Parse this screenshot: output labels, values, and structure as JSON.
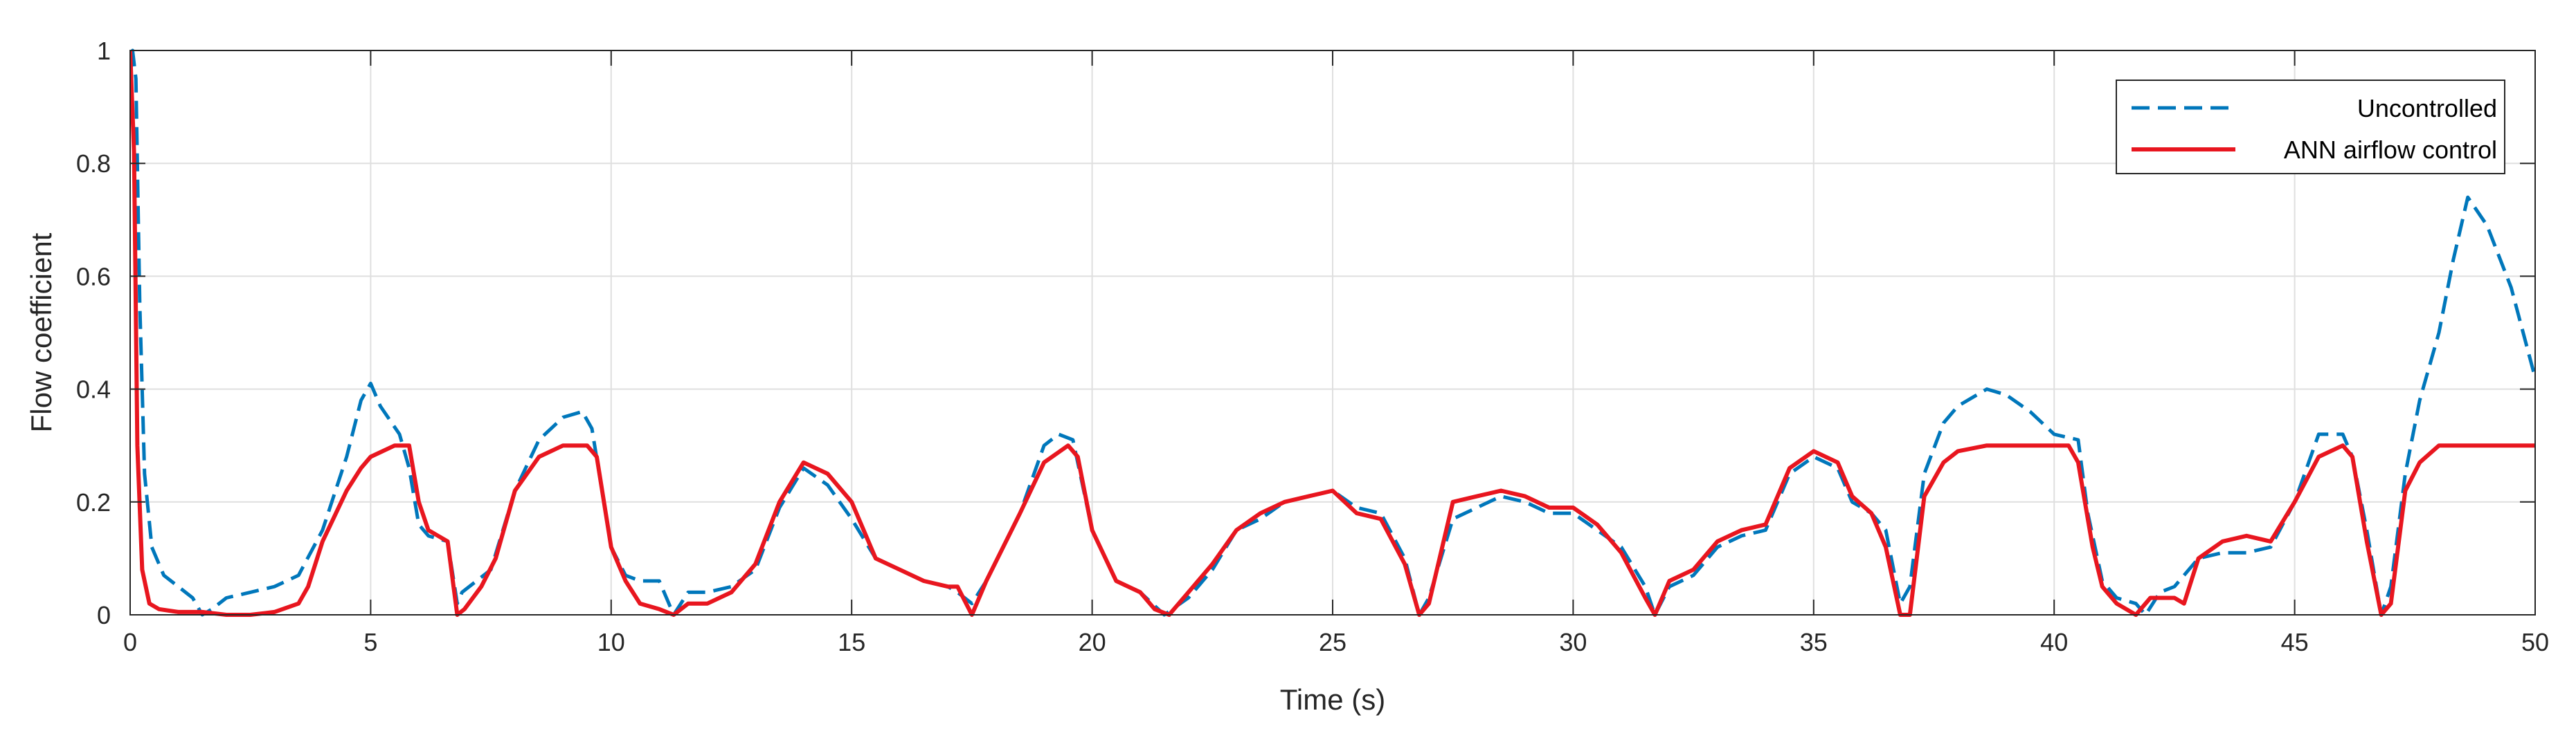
{
  "chart_data": {
    "type": "line",
    "xlabel": "Time (s)",
    "ylabel": "Flow coefficient",
    "xlim": [
      0,
      50
    ],
    "ylim": [
      0,
      1
    ],
    "xticks": [
      0,
      5,
      10,
      15,
      20,
      25,
      30,
      35,
      40,
      45,
      50
    ],
    "yticks": [
      0,
      0.2,
      0.4,
      0.6,
      0.8,
      1
    ],
    "xtick_labels": [
      "0",
      "5",
      "10",
      "15",
      "20",
      "25",
      "30",
      "35",
      "40",
      "45",
      "50"
    ],
    "ytick_labels": [
      "0",
      "0.2",
      "0.4",
      "0.6",
      "0.8",
      "1"
    ],
    "grid": true,
    "legend_position": "top-right",
    "series": [
      {
        "name": "Uncontrolled",
        "color": "#0077BB",
        "style": "dashed",
        "points": [
          [
            0,
            0.95
          ],
          [
            0.05,
            1.0
          ],
          [
            0.12,
            0.95
          ],
          [
            0.2,
            0.55
          ],
          [
            0.3,
            0.25
          ],
          [
            0.45,
            0.12
          ],
          [
            0.7,
            0.07
          ],
          [
            1.0,
            0.05
          ],
          [
            1.3,
            0.03
          ],
          [
            1.5,
            0.0
          ],
          [
            1.7,
            0.01
          ],
          [
            2.0,
            0.03
          ],
          [
            2.5,
            0.04
          ],
          [
            3.0,
            0.05
          ],
          [
            3.5,
            0.07
          ],
          [
            4.0,
            0.15
          ],
          [
            4.5,
            0.28
          ],
          [
            4.8,
            0.38
          ],
          [
            5.0,
            0.41
          ],
          [
            5.2,
            0.37
          ],
          [
            5.6,
            0.32
          ],
          [
            5.8,
            0.26
          ],
          [
            6.0,
            0.16
          ],
          [
            6.2,
            0.14
          ],
          [
            6.6,
            0.13
          ],
          [
            6.8,
            0.02
          ],
          [
            6.9,
            0.04
          ],
          [
            7.2,
            0.06
          ],
          [
            7.5,
            0.08
          ],
          [
            8.0,
            0.22
          ],
          [
            8.5,
            0.31
          ],
          [
            9.0,
            0.35
          ],
          [
            9.4,
            0.36
          ],
          [
            9.6,
            0.33
          ],
          [
            10.0,
            0.12
          ],
          [
            10.3,
            0.07
          ],
          [
            10.6,
            0.06
          ],
          [
            11.0,
            0.06
          ],
          [
            11.3,
            0.0
          ],
          [
            11.6,
            0.04
          ],
          [
            12.0,
            0.04
          ],
          [
            12.5,
            0.05
          ],
          [
            13.0,
            0.08
          ],
          [
            13.5,
            0.19
          ],
          [
            14.0,
            0.26
          ],
          [
            14.5,
            0.23
          ],
          [
            15.0,
            0.17
          ],
          [
            15.5,
            0.1
          ],
          [
            16.0,
            0.08
          ],
          [
            16.5,
            0.06
          ],
          [
            17.0,
            0.05
          ],
          [
            17.2,
            0.04
          ],
          [
            17.5,
            0.02
          ],
          [
            17.8,
            0.06
          ],
          [
            18.5,
            0.18
          ],
          [
            19.0,
            0.3
          ],
          [
            19.3,
            0.32
          ],
          [
            19.6,
            0.31
          ],
          [
            20.0,
            0.15
          ],
          [
            20.5,
            0.06
          ],
          [
            21.0,
            0.04
          ],
          [
            21.5,
            0.0
          ],
          [
            22.0,
            0.03
          ],
          [
            22.5,
            0.08
          ],
          [
            23.0,
            0.15
          ],
          [
            23.5,
            0.17
          ],
          [
            24.0,
            0.2
          ],
          [
            24.5,
            0.21
          ],
          [
            25.0,
            0.22
          ],
          [
            25.5,
            0.19
          ],
          [
            26.0,
            0.18
          ],
          [
            26.5,
            0.1
          ],
          [
            26.8,
            0.0
          ],
          [
            27.0,
            0.03
          ],
          [
            27.5,
            0.17
          ],
          [
            28.0,
            0.19
          ],
          [
            28.5,
            0.21
          ],
          [
            29.0,
            0.2
          ],
          [
            29.5,
            0.18
          ],
          [
            30.0,
            0.18
          ],
          [
            30.5,
            0.15
          ],
          [
            31.0,
            0.12
          ],
          [
            31.5,
            0.05
          ],
          [
            31.7,
            0.0
          ],
          [
            32.0,
            0.05
          ],
          [
            32.5,
            0.07
          ],
          [
            33.0,
            0.12
          ],
          [
            33.5,
            0.14
          ],
          [
            34.0,
            0.15
          ],
          [
            34.5,
            0.25
          ],
          [
            35.0,
            0.28
          ],
          [
            35.5,
            0.26
          ],
          [
            35.8,
            0.2
          ],
          [
            36.2,
            0.18
          ],
          [
            36.5,
            0.15
          ],
          [
            36.8,
            0.02
          ],
          [
            37.0,
            0.05
          ],
          [
            37.3,
            0.25
          ],
          [
            37.7,
            0.34
          ],
          [
            38.0,
            0.37
          ],
          [
            38.6,
            0.4
          ],
          [
            39.0,
            0.39
          ],
          [
            39.5,
            0.36
          ],
          [
            40.0,
            0.32
          ],
          [
            40.5,
            0.31
          ],
          [
            40.7,
            0.18
          ],
          [
            41.0,
            0.06
          ],
          [
            41.3,
            0.03
          ],
          [
            41.7,
            0.02
          ],
          [
            41.9,
            0.0
          ],
          [
            42.2,
            0.04
          ],
          [
            42.5,
            0.05
          ],
          [
            43.0,
            0.1
          ],
          [
            43.5,
            0.11
          ],
          [
            44.0,
            0.11
          ],
          [
            44.5,
            0.12
          ],
          [
            45.0,
            0.2
          ],
          [
            45.5,
            0.32
          ],
          [
            46.0,
            0.32
          ],
          [
            46.2,
            0.28
          ],
          [
            46.5,
            0.15
          ],
          [
            46.8,
            0.0
          ],
          [
            47.0,
            0.05
          ],
          [
            47.3,
            0.25
          ],
          [
            47.6,
            0.38
          ],
          [
            48.0,
            0.5
          ],
          [
            48.3,
            0.63
          ],
          [
            48.6,
            0.74
          ],
          [
            49.0,
            0.69
          ],
          [
            49.5,
            0.58
          ],
          [
            50.0,
            0.42
          ]
        ]
      },
      {
        "name": "ANN airflow control",
        "color": "#E8161F",
        "style": "solid",
        "points": [
          [
            0,
            1.0
          ],
          [
            0.08,
            0.82
          ],
          [
            0.15,
            0.3
          ],
          [
            0.25,
            0.08
          ],
          [
            0.4,
            0.02
          ],
          [
            0.6,
            0.01
          ],
          [
            1.0,
            0.005
          ],
          [
            1.5,
            0.005
          ],
          [
            2.0,
            0.0
          ],
          [
            2.5,
            0.0
          ],
          [
            3.0,
            0.005
          ],
          [
            3.5,
            0.02
          ],
          [
            3.7,
            0.05
          ],
          [
            4.0,
            0.13
          ],
          [
            4.5,
            0.22
          ],
          [
            4.8,
            0.26
          ],
          [
            5.0,
            0.28
          ],
          [
            5.5,
            0.3
          ],
          [
            5.8,
            0.3
          ],
          [
            6.0,
            0.2
          ],
          [
            6.2,
            0.15
          ],
          [
            6.6,
            0.13
          ],
          [
            6.8,
            0.0
          ],
          [
            6.95,
            0.01
          ],
          [
            7.3,
            0.05
          ],
          [
            7.6,
            0.1
          ],
          [
            8.0,
            0.22
          ],
          [
            8.5,
            0.28
          ],
          [
            9.0,
            0.3
          ],
          [
            9.5,
            0.3
          ],
          [
            9.7,
            0.28
          ],
          [
            10.0,
            0.12
          ],
          [
            10.3,
            0.06
          ],
          [
            10.6,
            0.02
          ],
          [
            11.0,
            0.01
          ],
          [
            11.3,
            0.0
          ],
          [
            11.6,
            0.02
          ],
          [
            12.0,
            0.02
          ],
          [
            12.5,
            0.04
          ],
          [
            13.0,
            0.09
          ],
          [
            13.5,
            0.2
          ],
          [
            14.0,
            0.27
          ],
          [
            14.5,
            0.25
          ],
          [
            15.0,
            0.2
          ],
          [
            15.5,
            0.1
          ],
          [
            16.0,
            0.08
          ],
          [
            16.5,
            0.06
          ],
          [
            17.0,
            0.05
          ],
          [
            17.2,
            0.05
          ],
          [
            17.5,
            0.0
          ],
          [
            17.8,
            0.06
          ],
          [
            18.5,
            0.18
          ],
          [
            19.0,
            0.27
          ],
          [
            19.5,
            0.3
          ],
          [
            19.7,
            0.28
          ],
          [
            20.0,
            0.15
          ],
          [
            20.5,
            0.06
          ],
          [
            21.0,
            0.04
          ],
          [
            21.3,
            0.01
          ],
          [
            21.6,
            0.0
          ],
          [
            22.0,
            0.04
          ],
          [
            22.5,
            0.09
          ],
          [
            23.0,
            0.15
          ],
          [
            23.5,
            0.18
          ],
          [
            24.0,
            0.2
          ],
          [
            24.5,
            0.21
          ],
          [
            25.0,
            0.22
          ],
          [
            25.5,
            0.18
          ],
          [
            26.0,
            0.17
          ],
          [
            26.5,
            0.09
          ],
          [
            26.8,
            0.0
          ],
          [
            27.0,
            0.02
          ],
          [
            27.5,
            0.2
          ],
          [
            28.0,
            0.21
          ],
          [
            28.5,
            0.22
          ],
          [
            29.0,
            0.21
          ],
          [
            29.5,
            0.19
          ],
          [
            30.0,
            0.19
          ],
          [
            30.5,
            0.16
          ],
          [
            31.0,
            0.11
          ],
          [
            31.5,
            0.03
          ],
          [
            31.7,
            0.0
          ],
          [
            32.0,
            0.06
          ],
          [
            32.5,
            0.08
          ],
          [
            33.0,
            0.13
          ],
          [
            33.5,
            0.15
          ],
          [
            34.0,
            0.16
          ],
          [
            34.5,
            0.26
          ],
          [
            35.0,
            0.29
          ],
          [
            35.5,
            0.27
          ],
          [
            35.8,
            0.21
          ],
          [
            36.2,
            0.18
          ],
          [
            36.5,
            0.12
          ],
          [
            36.8,
            0.0
          ],
          [
            37.0,
            0.0
          ],
          [
            37.3,
            0.21
          ],
          [
            37.7,
            0.27
          ],
          [
            38.0,
            0.29
          ],
          [
            38.6,
            0.3
          ],
          [
            39.0,
            0.3
          ],
          [
            40.0,
            0.3
          ],
          [
            40.3,
            0.3
          ],
          [
            40.5,
            0.27
          ],
          [
            40.8,
            0.12
          ],
          [
            41.0,
            0.05
          ],
          [
            41.3,
            0.02
          ],
          [
            41.7,
            0.0
          ],
          [
            42.0,
            0.03
          ],
          [
            42.5,
            0.03
          ],
          [
            42.7,
            0.02
          ],
          [
            43.0,
            0.1
          ],
          [
            43.5,
            0.13
          ],
          [
            44.0,
            0.14
          ],
          [
            44.5,
            0.13
          ],
          [
            45.0,
            0.2
          ],
          [
            45.5,
            0.28
          ],
          [
            46.0,
            0.3
          ],
          [
            46.2,
            0.28
          ],
          [
            46.5,
            0.13
          ],
          [
            46.8,
            0.0
          ],
          [
            47.0,
            0.02
          ],
          [
            47.3,
            0.22
          ],
          [
            47.6,
            0.27
          ],
          [
            48.0,
            0.3
          ],
          [
            49.0,
            0.3
          ],
          [
            50.0,
            0.3
          ]
        ]
      }
    ]
  }
}
